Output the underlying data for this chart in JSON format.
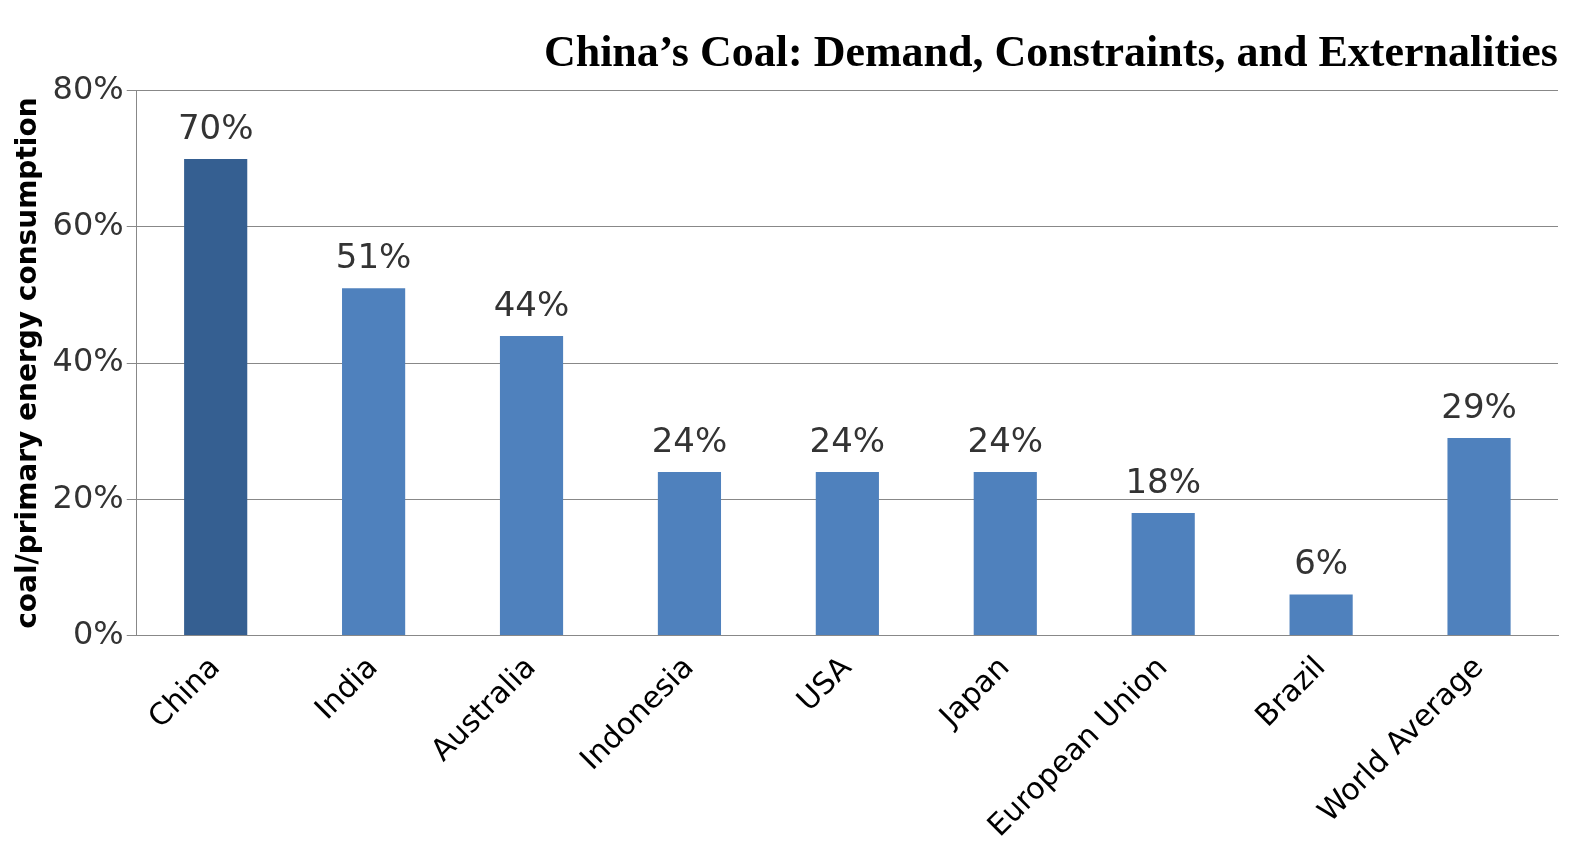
{
  "chart_data": {
    "type": "bar",
    "title": "China’s Coal: Demand, Constraints, and Externalities",
    "ylabel": "coal/primary energy consumption",
    "categories": [
      "China",
      "India",
      "Australia",
      "Indonesia",
      "USA",
      "Japan",
      "European Union",
      "Brazil",
      "World Average"
    ],
    "values": [
      70,
      51,
      44,
      24,
      24,
      24,
      18,
      6,
      29
    ],
    "colors": [
      "#355f91",
      "#4f81bd",
      "#4f81bd",
      "#4f81bd",
      "#4f81bd",
      "#4f81bd",
      "#4f81bd",
      "#4f81bd",
      "#4f81bd"
    ],
    "value_labels": [
      "70%",
      "51%",
      "44%",
      "24%",
      "24%",
      "24%",
      "18%",
      "6%",
      "29%"
    ],
    "ylim": [
      0,
      80
    ],
    "yticks": [
      {
        "value": 0,
        "label": "0%"
      },
      {
        "value": 20,
        "label": "20%"
      },
      {
        "value": 40,
        "label": "40%"
      },
      {
        "value": 60,
        "label": "60%"
      },
      {
        "value": 80,
        "label": "80%"
      }
    ],
    "grid": "y",
    "legend": false
  }
}
